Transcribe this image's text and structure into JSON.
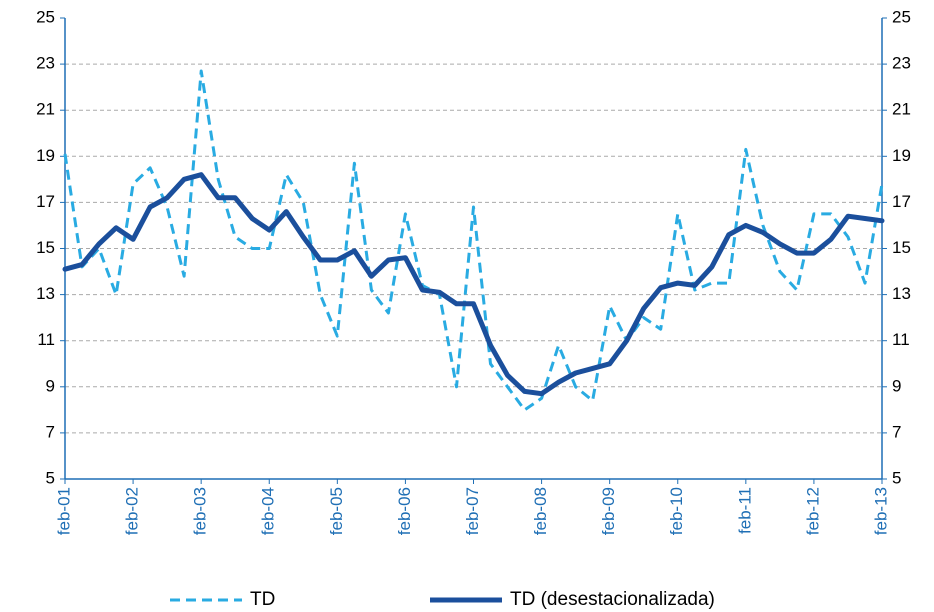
{
  "chart_data": {
    "type": "line",
    "categories": [
      "feb-01",
      null,
      null,
      null,
      "feb-02",
      null,
      null,
      null,
      "feb-03",
      null,
      null,
      null,
      "feb-04",
      null,
      null,
      null,
      "feb-05",
      null,
      null,
      null,
      "feb-06",
      null,
      null,
      null,
      "feb-07",
      null,
      null,
      null,
      "feb-08",
      null,
      null,
      null,
      "feb-09",
      null,
      null,
      null,
      "feb-10",
      null,
      null,
      null,
      "feb-11",
      null,
      null,
      null,
      "feb-12",
      null,
      null,
      null,
      "feb-13"
    ],
    "series": [
      {
        "name": "TD",
        "color": "#29abe2",
        "dashed": true,
        "values": [
          19.1,
          14.2,
          15.0,
          13.0,
          17.8,
          18.5,
          16.8,
          13.8,
          22.7,
          18.0,
          15.5,
          15.0,
          15.0,
          18.2,
          17.0,
          13.0,
          11.2,
          18.7,
          13.2,
          12.2,
          16.5,
          13.4,
          13.0,
          9.0,
          16.8,
          10.0,
          9.0,
          8.0,
          8.5,
          10.8,
          9.0,
          8.4,
          12.5,
          11.0,
          12.0,
          11.5,
          16.5,
          13.2,
          13.5,
          13.5,
          19.3,
          16.0,
          14.0,
          13.2,
          16.5,
          16.5,
          15.5,
          13.5,
          17.8
        ]
      },
      {
        "name": "TD (desestacionalizada)",
        "color": "#1b4f9c",
        "dashed": false,
        "values": [
          14.1,
          14.3,
          15.2,
          15.9,
          15.4,
          16.8,
          17.2,
          18.0,
          18.2,
          17.2,
          17.2,
          16.3,
          15.8,
          16.6,
          15.5,
          14.5,
          14.5,
          14.9,
          13.8,
          14.5,
          14.6,
          13.2,
          13.1,
          12.6,
          12.6,
          10.8,
          9.5,
          8.8,
          8.7,
          9.2,
          9.6,
          9.8,
          10.0,
          11.0,
          12.4,
          13.3,
          13.5,
          13.4,
          14.2,
          15.6,
          16.0,
          15.7,
          15.2,
          14.8,
          14.8,
          15.4,
          16.4,
          16.3,
          16.2
        ]
      }
    ],
    "ylim": [
      5,
      25
    ],
    "yticks": [
      5,
      7,
      9,
      11,
      13,
      15,
      17,
      19,
      21,
      23,
      25
    ],
    "y2lim": [
      5,
      25
    ],
    "y2ticks": [
      5,
      7,
      9,
      11,
      13,
      15,
      17,
      19,
      21,
      23,
      25
    ],
    "grid": true,
    "legend": "bottom"
  }
}
